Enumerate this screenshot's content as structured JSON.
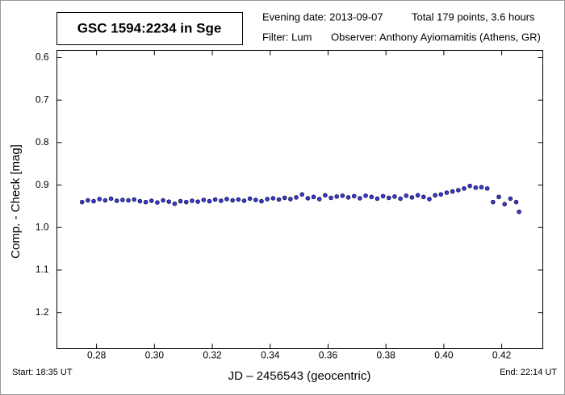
{
  "chart_data": {
    "type": "scatter",
    "title": "GSC 1594:2234 in Sge",
    "evening_date": "Evening date: 2013-09-07",
    "total": "Total 179 points, 3.6 hours",
    "filter": "Filter: Lum",
    "observer": "Observer: Anthony Ayiomamitis (Athens, GR)",
    "start": "Start: 18:35 UT",
    "end": "End: 22:14 UT",
    "x_label": "JD – 2456543  (geocentric)",
    "y_label": "Comp. - Check [mag]",
    "y_inverted": true,
    "color": "#3a3ad0",
    "xlim": [
      0.2663,
      0.4342
    ],
    "ylim": [
      0.583,
      1.285
    ],
    "xticks": [
      {
        "value": 0.28,
        "label": "0.28"
      },
      {
        "value": 0.3,
        "label": "0.30"
      },
      {
        "value": 0.32,
        "label": "0.32"
      },
      {
        "value": 0.34,
        "label": "0.34"
      },
      {
        "value": 0.36,
        "label": "0.36"
      },
      {
        "value": 0.38,
        "label": "0.38"
      },
      {
        "value": 0.4,
        "label": "0.40"
      },
      {
        "value": 0.42,
        "label": "0.42"
      }
    ],
    "yticks": [
      0.6,
      0.7,
      0.8,
      0.9,
      {
        "value": 1,
        "label": "1.0"
      },
      1.1,
      1.2
    ],
    "x": [
      0.275,
      0.277,
      0.279,
      0.281,
      0.283,
      0.285,
      0.287,
      0.289,
      0.291,
      0.293,
      0.295,
      0.297,
      0.299,
      0.301,
      0.303,
      0.305,
      0.307,
      0.309,
      0.311,
      0.313,
      0.315,
      0.317,
      0.319,
      0.321,
      0.323,
      0.325,
      0.327,
      0.329,
      0.331,
      0.333,
      0.335,
      0.337,
      0.339,
      0.341,
      0.343,
      0.345,
      0.347,
      0.349,
      0.351,
      0.353,
      0.355,
      0.357,
      0.359,
      0.361,
      0.363,
      0.365,
      0.367,
      0.369,
      0.371,
      0.373,
      0.375,
      0.377,
      0.379,
      0.381,
      0.383,
      0.385,
      0.387,
      0.389,
      0.391,
      0.393,
      0.395,
      0.397,
      0.399,
      0.401,
      0.403,
      0.405,
      0.407,
      0.409,
      0.411,
      0.413,
      0.415,
      0.417,
      0.419,
      0.421,
      0.423,
      0.425,
      0.426
    ],
    "values": [
      0.94,
      0.936,
      0.938,
      0.933,
      0.936,
      0.932,
      0.937,
      0.935,
      0.936,
      0.934,
      0.938,
      0.94,
      0.937,
      0.941,
      0.936,
      0.939,
      0.944,
      0.938,
      0.94,
      0.937,
      0.939,
      0.935,
      0.938,
      0.934,
      0.937,
      0.933,
      0.936,
      0.934,
      0.937,
      0.932,
      0.935,
      0.938,
      0.933,
      0.931,
      0.934,
      0.93,
      0.933,
      0.929,
      0.922,
      0.931,
      0.928,
      0.933,
      0.924,
      0.93,
      0.927,
      0.925,
      0.929,
      0.926,
      0.931,
      0.925,
      0.928,
      0.932,
      0.926,
      0.93,
      0.927,
      0.932,
      0.925,
      0.929,
      0.924,
      0.928,
      0.933,
      0.924,
      0.922,
      0.918,
      0.915,
      0.912,
      0.908,
      0.902,
      0.906,
      0.905,
      0.908,
      0.94,
      0.928,
      0.945,
      0.932,
      0.94,
      0.963
    ]
  }
}
